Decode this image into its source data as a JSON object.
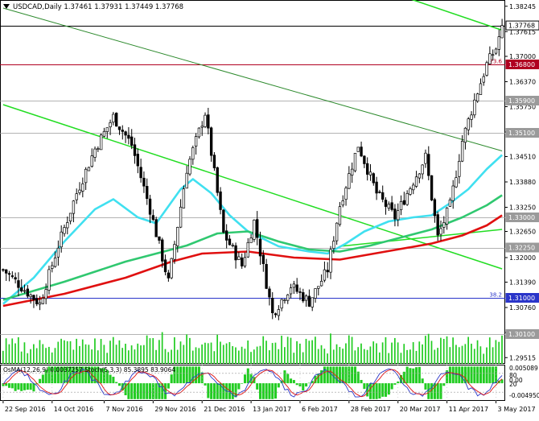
{
  "chart_data": {
    "type": "candlestick",
    "header": {
      "symbol": "USDCAD,Daily",
      "ohlc": [
        "1.37461",
        "1.37931",
        "1.37449",
        "1.37768"
      ]
    },
    "price_axis": {
      "range": [
        1.2936,
        1.384
      ],
      "ticks": [
        "1.38245",
        "1.37615",
        "1.37000",
        "1.36370",
        "1.35750",
        "1.35120",
        "1.34510",
        "1.33880",
        "1.33250",
        "1.32650",
        "1.32000",
        "1.31390",
        "1.30760",
        "1.30140",
        "1.29515"
      ],
      "tick_values": [
        1.38245,
        1.37615,
        1.37,
        1.3637,
        1.3575,
        1.3512,
        1.3451,
        1.3388,
        1.3325,
        1.3265,
        1.32,
        1.3139,
        1.3076,
        1.3014,
        1.29515
      ]
    },
    "x_axis": {
      "labels": [
        "22 Sep 2016",
        "14 Oct 2016",
        "7 Nov 2016",
        "29 Nov 2016",
        "21 Dec 2016",
        "13 Jan 2017",
        "6 Feb 2017",
        "28 Feb 2017",
        "20 Mar 2017",
        "11 Apr 2017",
        "3 May 2017"
      ],
      "bar_index": [
        0,
        16,
        33,
        49,
        65,
        81,
        97,
        113,
        129,
        145,
        161
      ]
    },
    "bar_count": 164,
    "levels": [
      {
        "label": "1.37768",
        "value": 1.37768,
        "color": "#000000"
      },
      {
        "label": "1.36800",
        "value": 1.368,
        "color": "#b00020",
        "note": "23.6"
      },
      {
        "label": "1.35900",
        "value": 1.359,
        "color": "#9a9a9a"
      },
      {
        "label": "1.35100",
        "value": 1.351,
        "color": "#9a9a9a"
      },
      {
        "label": "1.33000",
        "value": 1.33,
        "color": "#9a9a9a"
      },
      {
        "label": "1.32250",
        "value": 1.3225,
        "color": "#9a9a9a"
      },
      {
        "label": "1.31000",
        "value": 1.31,
        "color": "#2a35c9",
        "note": "38.2"
      },
      {
        "label": "1.30100",
        "value": 1.301,
        "color": "#9a9a9a"
      }
    ],
    "key_points": [
      {
        "bar": 0,
        "price": 1.317
      },
      {
        "bar": 12,
        "price": 1.3085
      },
      {
        "bar": 18,
        "price": 1.323
      },
      {
        "bar": 24,
        "price": 1.336
      },
      {
        "bar": 30,
        "price": 1.347
      },
      {
        "bar": 36,
        "price": 1.355
      },
      {
        "bar": 42,
        "price": 1.348
      },
      {
        "bar": 48,
        "price": 1.332
      },
      {
        "bar": 54,
        "price": 1.314
      },
      {
        "bar": 60,
        "price": 1.342
      },
      {
        "bar": 66,
        "price": 1.356
      },
      {
        "bar": 72,
        "price": 1.326
      },
      {
        "bar": 78,
        "price": 1.318
      },
      {
        "bar": 82,
        "price": 1.329
      },
      {
        "bar": 88,
        "price": 1.306
      },
      {
        "bar": 94,
        "price": 1.313
      },
      {
        "bar": 100,
        "price": 1.309
      },
      {
        "bar": 106,
        "price": 1.317
      },
      {
        "bar": 110,
        "price": 1.333
      },
      {
        "bar": 116,
        "price": 1.348
      },
      {
        "bar": 122,
        "price": 1.336
      },
      {
        "bar": 128,
        "price": 1.33
      },
      {
        "bar": 134,
        "price": 1.339
      },
      {
        "bar": 138,
        "price": 1.345
      },
      {
        "bar": 142,
        "price": 1.325
      },
      {
        "bar": 146,
        "price": 1.333
      },
      {
        "bar": 150,
        "price": 1.349
      },
      {
        "bar": 154,
        "price": 1.359
      },
      {
        "bar": 158,
        "price": 1.368
      },
      {
        "bar": 161,
        "price": 1.372
      },
      {
        "bar": 163,
        "price": 1.3777
      }
    ],
    "moving_averages": [
      {
        "color": "#40e0f0",
        "points": [
          [
            0,
            1.3085
          ],
          [
            10,
            1.315
          ],
          [
            20,
            1.324
          ],
          [
            30,
            1.332
          ],
          [
            36,
            1.3345
          ],
          [
            44,
            1.33
          ],
          [
            50,
            1.3285
          ],
          [
            58,
            1.337
          ],
          [
            62,
            1.3395
          ],
          [
            68,
            1.336
          ],
          [
            74,
            1.3305
          ],
          [
            80,
            1.3265
          ],
          [
            90,
            1.3228
          ],
          [
            100,
            1.3215
          ],
          [
            106,
            1.321
          ],
          [
            112,
            1.3235
          ],
          [
            118,
            1.3265
          ],
          [
            126,
            1.329
          ],
          [
            134,
            1.33
          ],
          [
            140,
            1.3305
          ],
          [
            146,
            1.3335
          ],
          [
            152,
            1.337
          ],
          [
            158,
            1.342
          ],
          [
            163,
            1.3455
          ]
        ]
      },
      {
        "color": "#30c870",
        "points": [
          [
            0,
            1.3095
          ],
          [
            20,
            1.314
          ],
          [
            40,
            1.319
          ],
          [
            60,
            1.323
          ],
          [
            70,
            1.326
          ],
          [
            80,
            1.3265
          ],
          [
            90,
            1.324
          ],
          [
            100,
            1.322
          ],
          [
            110,
            1.3215
          ],
          [
            120,
            1.323
          ],
          [
            130,
            1.325
          ],
          [
            140,
            1.327
          ],
          [
            150,
            1.33
          ],
          [
            158,
            1.333
          ],
          [
            163,
            1.3355
          ]
        ]
      },
      {
        "color": "#e01010",
        "points": [
          [
            0,
            1.308
          ],
          [
            20,
            1.311
          ],
          [
            40,
            1.315
          ],
          [
            55,
            1.319
          ],
          [
            65,
            1.321
          ],
          [
            80,
            1.3215
          ],
          [
            95,
            1.32
          ],
          [
            110,
            1.3195
          ],
          [
            125,
            1.3215
          ],
          [
            140,
            1.3235
          ],
          [
            150,
            1.3255
          ],
          [
            158,
            1.328
          ],
          [
            163,
            1.3305
          ]
        ]
      }
    ],
    "trend_lines": [
      {
        "color": "#22dd22",
        "width": 1.5,
        "points": [
          [
            0,
            1.358
          ],
          [
            163,
            1.3172
          ]
        ]
      },
      {
        "color": "#22dd22",
        "width": 1.5,
        "points": [
          [
            110,
            1.3228
          ],
          [
            163,
            1.327
          ]
        ]
      },
      {
        "color": "#22dd22",
        "width": 1.5,
        "points": [
          [
            127,
            1.3858
          ],
          [
            163,
            1.3765
          ]
        ]
      },
      {
        "color": "#2d8a2d",
        "width": 1,
        "points": [
          [
            0,
            1.382
          ],
          [
            163,
            1.3465
          ]
        ]
      }
    ],
    "oscillator": {
      "label": "OsMA(12,26,9) 0.0037257  Stoch(5,3,3) 85.3895 83.9064",
      "ticks": [
        "0.005089",
        "80",
        "20",
        "0.00",
        "-0.004950"
      ],
      "tick_values": [
        0.005089,
        0.0025,
        -0.0025,
        0.0,
        -0.00495
      ],
      "range": [
        -0.0055,
        0.0058
      ],
      "histogram_color": "#22cc22",
      "stoch_colors": [
        "#2a35c9",
        "#e01010"
      ]
    }
  }
}
